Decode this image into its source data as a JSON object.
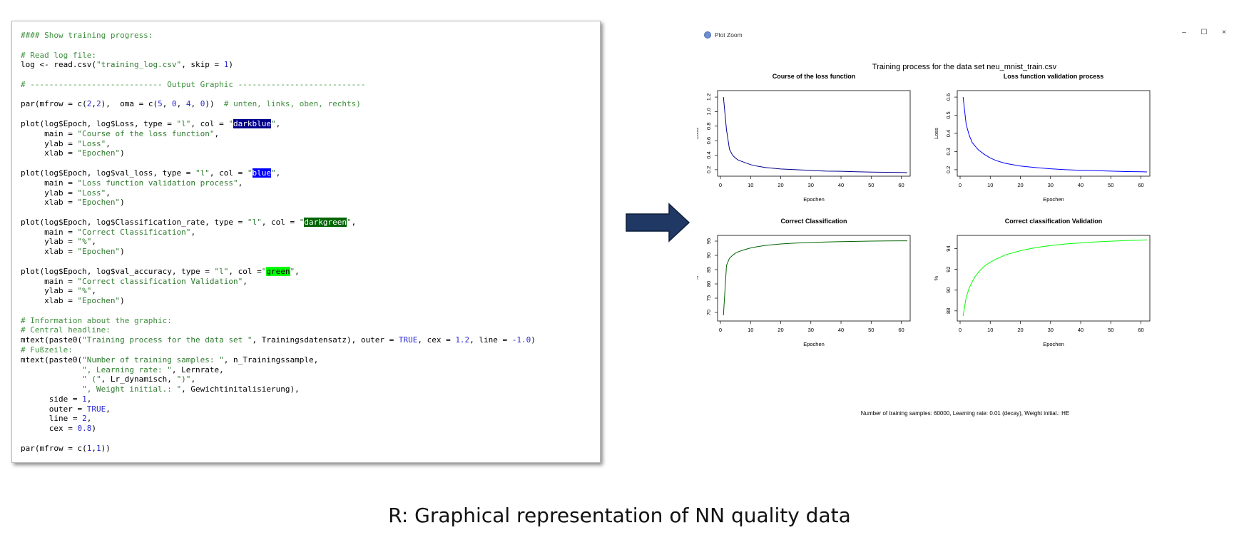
{
  "code_lines": [
    [
      [
        "c",
        "#### Show training progress:"
      ]
    ],
    [],
    [
      [
        "c",
        "# Read log file:"
      ]
    ],
    [
      [
        "t",
        "log <- read.csv("
      ],
      [
        "s",
        "\"training_log.csv\""
      ],
      [
        "t",
        ", skip = "
      ],
      [
        "n",
        "1"
      ],
      [
        "t",
        ")"
      ]
    ],
    [],
    [
      [
        "c",
        "# ---------------------------- Output Graphic ---------------------------"
      ]
    ],
    [],
    [
      [
        "t",
        "par(mfrow = c("
      ],
      [
        "n",
        "2"
      ],
      [
        "t",
        ","
      ],
      [
        "n",
        "2"
      ],
      [
        "t",
        "),  oma = c("
      ],
      [
        "n",
        "5"
      ],
      [
        "t",
        ", "
      ],
      [
        "n",
        "0"
      ],
      [
        "t",
        ", "
      ],
      [
        "n",
        "4"
      ],
      [
        "t",
        ", "
      ],
      [
        "n",
        "0"
      ],
      [
        "t",
        "))  "
      ],
      [
        "c",
        "# unten, links, oben, rechts)"
      ]
    ],
    [],
    [
      [
        "t",
        "plot(log$Epoch, log$Loss, type = "
      ],
      [
        "s",
        "\"l\""
      ],
      [
        "t",
        ", col = "
      ],
      [
        "s",
        "\""
      ],
      [
        "h",
        "darkblue",
        "darkblue"
      ],
      [
        "s",
        "\""
      ],
      [
        "t",
        ","
      ]
    ],
    [
      [
        "t",
        "     main = "
      ],
      [
        "s",
        "\"Course of the loss function\""
      ],
      [
        "t",
        ","
      ]
    ],
    [
      [
        "t",
        "     ylab = "
      ],
      [
        "s",
        "\"Loss\""
      ],
      [
        "t",
        ","
      ]
    ],
    [
      [
        "t",
        "     xlab = "
      ],
      [
        "s",
        "\"Epochen\""
      ],
      [
        "t",
        ")"
      ]
    ],
    [],
    [
      [
        "t",
        "plot(log$Epoch, log$val_loss, type = "
      ],
      [
        "s",
        "\"l\""
      ],
      [
        "t",
        ", col = "
      ],
      [
        "s",
        "\""
      ],
      [
        "h",
        "blue",
        "blue"
      ],
      [
        "s",
        "\""
      ],
      [
        "t",
        ","
      ]
    ],
    [
      [
        "t",
        "     main = "
      ],
      [
        "s",
        "\"Loss function validation process\""
      ],
      [
        "t",
        ","
      ]
    ],
    [
      [
        "t",
        "     ylab = "
      ],
      [
        "s",
        "\"Loss\""
      ],
      [
        "t",
        ","
      ]
    ],
    [
      [
        "t",
        "     xlab = "
      ],
      [
        "s",
        "\"Epochen\""
      ],
      [
        "t",
        ")"
      ]
    ],
    [],
    [
      [
        "t",
        "plot(log$Epoch, log$Classification_rate, type = "
      ],
      [
        "s",
        "\"l\""
      ],
      [
        "t",
        ", col = "
      ],
      [
        "s",
        "\""
      ],
      [
        "h",
        "darkgreen",
        "darkgreen"
      ],
      [
        "s",
        "\""
      ],
      [
        "t",
        ","
      ]
    ],
    [
      [
        "t",
        "     main = "
      ],
      [
        "s",
        "\"Correct Classification\""
      ],
      [
        "t",
        ","
      ]
    ],
    [
      [
        "t",
        "     ylab = "
      ],
      [
        "s",
        "\"%\""
      ],
      [
        "t",
        ","
      ]
    ],
    [
      [
        "t",
        "     xlab = "
      ],
      [
        "s",
        "\"Epochen\""
      ],
      [
        "t",
        ")"
      ]
    ],
    [],
    [
      [
        "t",
        "plot(log$Epoch, log$val_accuracy, type = "
      ],
      [
        "s",
        "\"l\""
      ],
      [
        "t",
        ", col ="
      ],
      [
        "s",
        "\""
      ],
      [
        "h",
        "green",
        "green"
      ],
      [
        "s",
        "\""
      ],
      [
        "t",
        ","
      ]
    ],
    [
      [
        "t",
        "     main = "
      ],
      [
        "s",
        "\"Correct classification Validation\""
      ],
      [
        "t",
        ","
      ]
    ],
    [
      [
        "t",
        "     ylab = "
      ],
      [
        "s",
        "\"%\""
      ],
      [
        "t",
        ","
      ]
    ],
    [
      [
        "t",
        "     xlab = "
      ],
      [
        "s",
        "\"Epochen\""
      ],
      [
        "t",
        ")"
      ]
    ],
    [],
    [
      [
        "c",
        "# Information about the graphic:"
      ]
    ],
    [
      [
        "c",
        "# Central headline:"
      ]
    ],
    [
      [
        "t",
        "mtext(paste0("
      ],
      [
        "s",
        "\"Training process for the data set \""
      ],
      [
        "t",
        ", Trainingsdatensatz), outer = "
      ],
      [
        "k",
        "TRUE"
      ],
      [
        "t",
        ", cex = "
      ],
      [
        "n",
        "1.2"
      ],
      [
        "t",
        ", line = "
      ],
      [
        "n",
        "-1.0"
      ],
      [
        "t",
        ")"
      ]
    ],
    [
      [
        "c",
        "# Fußzeile:"
      ]
    ],
    [
      [
        "t",
        "mtext(paste0("
      ],
      [
        "s",
        "\"Number of training samples: \""
      ],
      [
        "t",
        ", n_Trainingssample,"
      ]
    ],
    [
      [
        "s",
        "             \", Learning rate: \""
      ],
      [
        "t",
        ", Lernrate,"
      ]
    ],
    [
      [
        "s",
        "             \" (\""
      ],
      [
        "t",
        ", Lr_dynamisch, "
      ],
      [
        "s",
        "\")\""
      ],
      [
        "t",
        ","
      ]
    ],
    [
      [
        "s",
        "             \", Weight initial.: \""
      ],
      [
        "t",
        ", Gewichtinitalisierung),"
      ]
    ],
    [
      [
        "t",
        "      side = "
      ],
      [
        "n",
        "1"
      ],
      [
        "t",
        ","
      ]
    ],
    [
      [
        "t",
        "      outer = "
      ],
      [
        "k",
        "TRUE"
      ],
      [
        "t",
        ","
      ]
    ],
    [
      [
        "t",
        "      line = "
      ],
      [
        "n",
        "2"
      ],
      [
        "t",
        ","
      ]
    ],
    [
      [
        "t",
        "      cex = "
      ],
      [
        "n",
        "0.8"
      ],
      [
        "t",
        ")"
      ]
    ],
    [],
    [
      [
        "t",
        "par(mfrow = c("
      ],
      [
        "n",
        "1"
      ],
      [
        "t",
        ","
      ],
      [
        "n",
        "1"
      ],
      [
        "t",
        "))"
      ]
    ]
  ],
  "window": {
    "title": "Plot Zoom",
    "minimize": "–",
    "maximize": "☐",
    "close": "×"
  },
  "plots": {
    "main_title": "Training process for the data set neu_mnist_train.csv",
    "footer": "Number of training samples: 60000, Learning rate: 0.01 (decay), Weight initial.: HE"
  },
  "chart_data": [
    {
      "type": "line",
      "title": "Course of the loss function",
      "xlabel": "Epochen",
      "ylabel": "Loss",
      "color": "#00008b",
      "xlim": [
        0,
        62
      ],
      "ylim": [
        0.15,
        1.25
      ],
      "xticks": [
        0,
        10,
        20,
        30,
        40,
        50,
        60
      ],
      "yticks": [
        0.2,
        0.4,
        0.6,
        0.8,
        1.0,
        1.2
      ],
      "ytick_labels": [
        "0.2",
        "0.4",
        "0.6",
        "0.8",
        "1.0",
        "1.2"
      ],
      "x": [
        1,
        2,
        3,
        4,
        5,
        6,
        8,
        10,
        12,
        15,
        20,
        25,
        30,
        35,
        40,
        45,
        50,
        55,
        60,
        62
      ],
      "y": [
        1.2,
        0.75,
        0.48,
        0.4,
        0.36,
        0.33,
        0.3,
        0.27,
        0.25,
        0.23,
        0.21,
        0.2,
        0.19,
        0.18,
        0.178,
        0.172,
        0.168,
        0.165,
        0.162,
        0.16
      ]
    },
    {
      "type": "line",
      "title": "Loss function validation process",
      "xlabel": "Epochen",
      "ylabel": "Loss",
      "color": "#0000ff",
      "xlim": [
        0,
        62
      ],
      "ylim": [
        0.18,
        0.62
      ],
      "xticks": [
        0,
        10,
        20,
        30,
        40,
        50,
        60
      ],
      "yticks": [
        0.2,
        0.3,
        0.4,
        0.5,
        0.6
      ],
      "ytick_labels": [
        "0.2",
        "0.3",
        "0.4",
        "0.5",
        "0.6"
      ],
      "x": [
        1,
        2,
        3,
        4,
        5,
        6,
        8,
        10,
        12,
        15,
        20,
        25,
        30,
        35,
        40,
        45,
        50,
        55,
        60,
        62
      ],
      "y": [
        0.6,
        0.45,
        0.39,
        0.35,
        0.33,
        0.31,
        0.285,
        0.265,
        0.25,
        0.235,
        0.22,
        0.212,
        0.205,
        0.2,
        0.197,
        0.195,
        0.192,
        0.19,
        0.189,
        0.188
      ]
    },
    {
      "type": "line",
      "title": "Correct Classification",
      "xlabel": "Epochen",
      "ylabel": "%",
      "color": "#006400",
      "xlim": [
        0,
        62
      ],
      "ylim": [
        68,
        96
      ],
      "xticks": [
        0,
        10,
        20,
        30,
        40,
        50,
        60
      ],
      "yticks": [
        70,
        75,
        80,
        85,
        90,
        95
      ],
      "ytick_labels": [
        "70",
        "75",
        "80",
        "85",
        "90",
        "95"
      ],
      "x": [
        1,
        2,
        3,
        4,
        5,
        6,
        8,
        10,
        12,
        15,
        20,
        25,
        30,
        35,
        40,
        45,
        50,
        55,
        60,
        62
      ],
      "y": [
        69,
        86.5,
        89,
        90,
        90.8,
        91.3,
        92,
        92.6,
        93,
        93.5,
        94,
        94.3,
        94.5,
        94.7,
        94.8,
        94.9,
        95,
        95.05,
        95.1,
        95.1
      ]
    },
    {
      "type": "line",
      "title": "Correct classification Validation",
      "xlabel": "Epochen",
      "ylabel": "%",
      "color": "#00ff00",
      "xlim": [
        0,
        62
      ],
      "ylim": [
        87.3,
        95
      ],
      "xticks": [
        0,
        10,
        20,
        30,
        40,
        50,
        60
      ],
      "yticks": [
        88,
        90,
        92,
        94
      ],
      "ytick_labels": [
        "88",
        "90",
        "92",
        "94"
      ],
      "x": [
        1,
        2,
        3,
        4,
        5,
        6,
        8,
        10,
        12,
        15,
        20,
        25,
        30,
        35,
        40,
        45,
        50,
        55,
        60,
        62
      ],
      "y": [
        87.5,
        89.3,
        90.2,
        90.8,
        91.3,
        91.7,
        92.3,
        92.7,
        93,
        93.4,
        93.8,
        94.1,
        94.3,
        94.45,
        94.55,
        94.65,
        94.72,
        94.78,
        94.82,
        94.85
      ]
    }
  ],
  "caption": "R: Graphical representation of NN quality data"
}
